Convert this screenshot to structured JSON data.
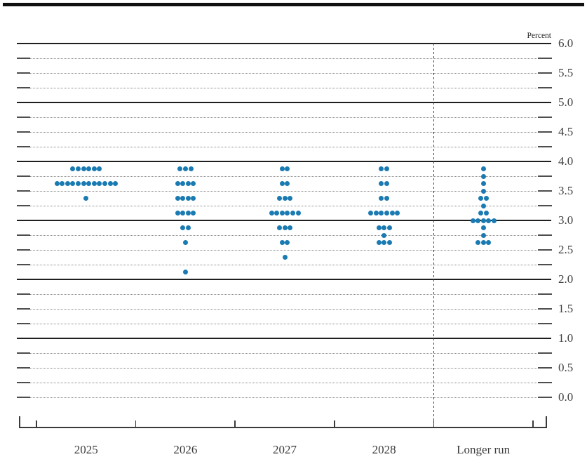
{
  "header": {
    "percent_label": "Percent"
  },
  "colors": {
    "dot": "#1a7ab2",
    "grid_solid": "#1f1f1f",
    "grid_dotted": "#8a8a8a",
    "edge_dash": "#4d4d4d",
    "axis": "#3a3a3a",
    "label": "#3f3f3f"
  },
  "chart_data": {
    "type": "scatter",
    "subtype": "fomc-dot-plot",
    "ylabel": "Percent",
    "ylim": [
      0.0,
      6.0
    ],
    "y_grid_step": 0.25,
    "y_label_step": 0.5,
    "grid": true,
    "legend": false,
    "solid_grid_values": [
      6.0,
      5.0,
      4.0,
      3.0,
      2.0,
      1.0
    ],
    "ytick_labels": [
      "6.0",
      "5.5",
      "5.0",
      "4.5",
      "4.0",
      "3.5",
      "3.0",
      "2.5",
      "2.0",
      "1.5",
      "1.0",
      "0.5",
      "0.0"
    ],
    "categories": [
      "2025",
      "2026",
      "2027",
      "2028",
      "Longer run"
    ],
    "separator_before_category": "Longer run",
    "dots": [
      {
        "category": "2025",
        "rate": 3.875,
        "count": 6
      },
      {
        "category": "2025",
        "rate": 3.625,
        "count": 12
      },
      {
        "category": "2025",
        "rate": 3.375,
        "count": 1
      },
      {
        "category": "2026",
        "rate": 3.875,
        "count": 3
      },
      {
        "category": "2026",
        "rate": 3.625,
        "count": 4
      },
      {
        "category": "2026",
        "rate": 3.375,
        "count": 4
      },
      {
        "category": "2026",
        "rate": 3.125,
        "count": 4
      },
      {
        "category": "2026",
        "rate": 2.875,
        "count": 2
      },
      {
        "category": "2026",
        "rate": 2.625,
        "count": 1
      },
      {
        "category": "2026",
        "rate": 2.125,
        "count": 1
      },
      {
        "category": "2027",
        "rate": 3.875,
        "count": 2
      },
      {
        "category": "2027",
        "rate": 3.625,
        "count": 2
      },
      {
        "category": "2027",
        "rate": 3.375,
        "count": 3
      },
      {
        "category": "2027",
        "rate": 3.125,
        "count": 6
      },
      {
        "category": "2027",
        "rate": 2.875,
        "count": 3
      },
      {
        "category": "2027",
        "rate": 2.625,
        "count": 2
      },
      {
        "category": "2027",
        "rate": 2.375,
        "count": 1
      },
      {
        "category": "2028",
        "rate": 3.875,
        "count": 2
      },
      {
        "category": "2028",
        "rate": 3.625,
        "count": 2
      },
      {
        "category": "2028",
        "rate": 3.375,
        "count": 2
      },
      {
        "category": "2028",
        "rate": 3.125,
        "count": 6
      },
      {
        "category": "2028",
        "rate": 2.875,
        "count": 3
      },
      {
        "category": "2028",
        "rate": 2.75,
        "count": 1
      },
      {
        "category": "2028",
        "rate": 2.625,
        "count": 3
      },
      {
        "category": "Longer run",
        "rate": 3.875,
        "count": 1
      },
      {
        "category": "Longer run",
        "rate": 3.75,
        "count": 1
      },
      {
        "category": "Longer run",
        "rate": 3.625,
        "count": 1
      },
      {
        "category": "Longer run",
        "rate": 3.5,
        "count": 1
      },
      {
        "category": "Longer run",
        "rate": 3.375,
        "count": 2
      },
      {
        "category": "Longer run",
        "rate": 3.25,
        "count": 1
      },
      {
        "category": "Longer run",
        "rate": 3.125,
        "count": 2
      },
      {
        "category": "Longer run",
        "rate": 3.0,
        "count": 5
      },
      {
        "category": "Longer run",
        "rate": 2.875,
        "count": 1
      },
      {
        "category": "Longer run",
        "rate": 2.75,
        "count": 1
      },
      {
        "category": "Longer run",
        "rate": 2.625,
        "count": 3
      }
    ]
  }
}
